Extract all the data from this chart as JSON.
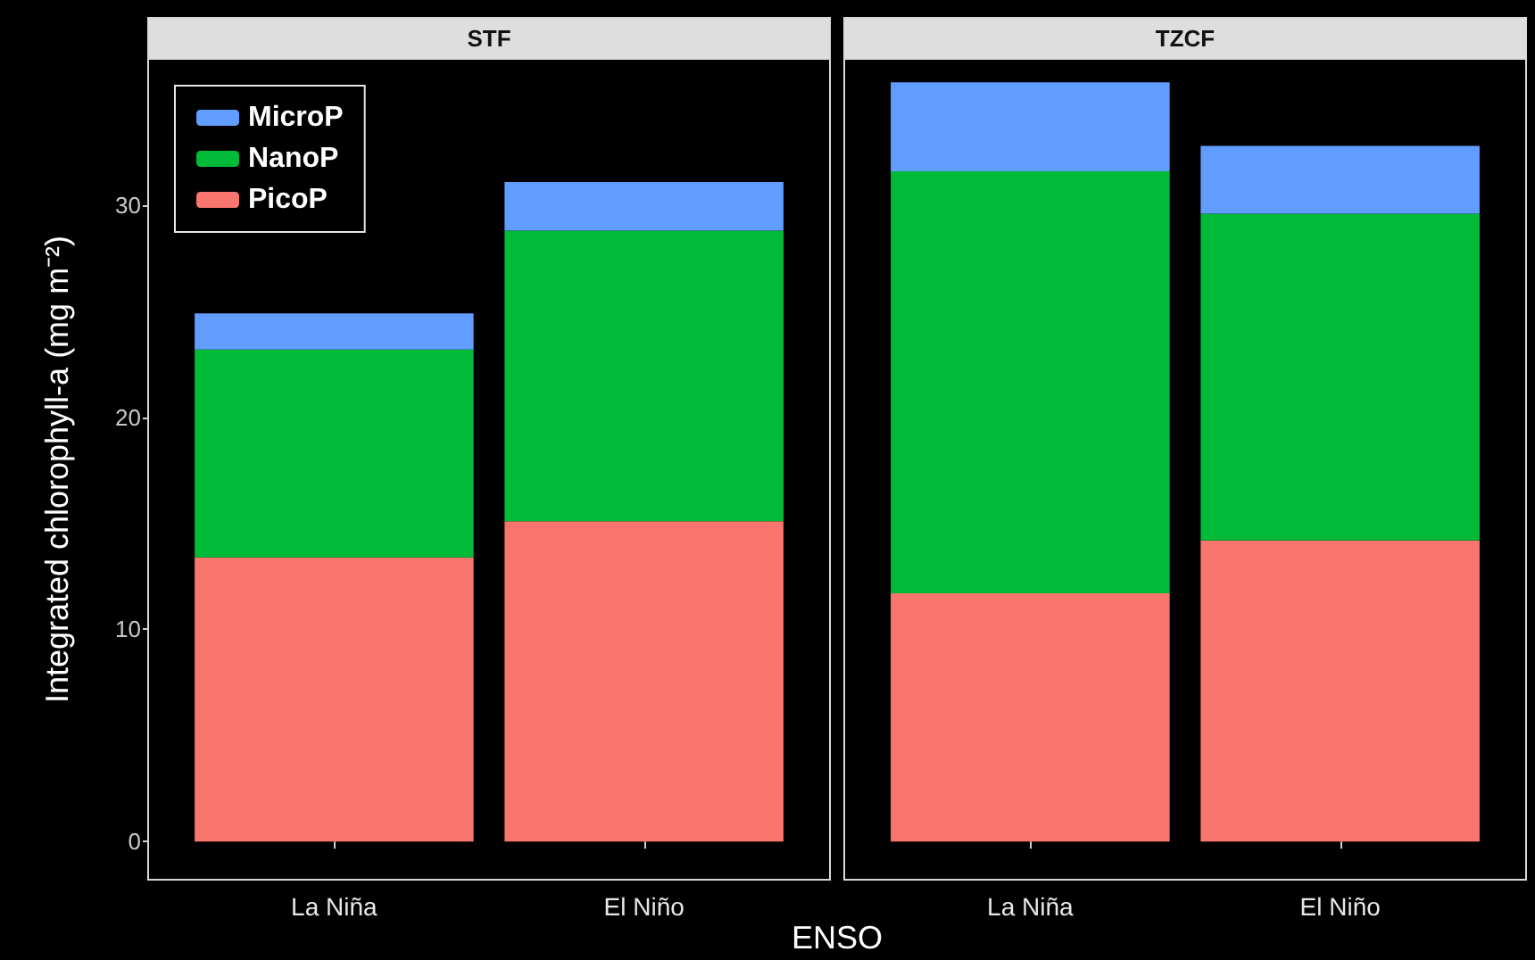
{
  "chart_data": [
    {
      "type": "bar",
      "title": "STF",
      "xlabel": "ENSO",
      "ylabel": "Integrated chlorophyll-a (mg m⁻²)",
      "categories": [
        "La Niña",
        "El Niño"
      ],
      "stacked": true,
      "series": [
        {
          "name": "PicoP",
          "color": "#f8766d",
          "values": [
            13.4,
            15.1
          ]
        },
        {
          "name": "NanoP",
          "color": "#00ba38",
          "values": [
            9.8,
            13.7
          ]
        },
        {
          "name": "MicroP",
          "color": "#619cff",
          "values": [
            1.7,
            2.3
          ]
        }
      ],
      "ylim": [
        -1.8,
        36.9
      ],
      "yticks": [
        0,
        10,
        20,
        30
      ],
      "legend": "top left"
    },
    {
      "type": "bar",
      "title": "TZCF",
      "categories": [
        "La Niña",
        "El Niño"
      ],
      "stacked": true,
      "series": [
        {
          "color": "#f8766d",
          "values": [
            11.7,
            14.2
          ]
        },
        {
          "color": "#00ba38",
          "values": [
            19.9,
            15.4
          ]
        },
        {
          "color": "#619cff",
          "values": [
            4.2,
            3.2
          ]
        }
      ],
      "ylim": [
        -1.8,
        36.9
      ],
      "yticks": [
        0,
        10,
        20,
        30
      ],
      "tick_labels": "x",
      "legend": false
    }
  ]
}
